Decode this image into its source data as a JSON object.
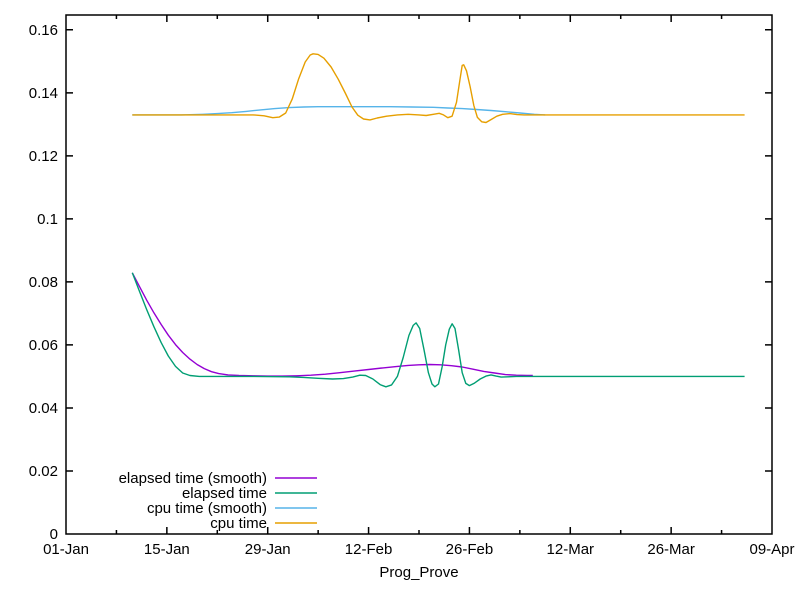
{
  "chart_data": {
    "type": "line",
    "title": "",
    "xlabel": "Prog_Prove",
    "ylabel": "",
    "grid": false,
    "x_axis": {
      "unit": "days-from-01-Jan",
      "range_days": [
        0,
        98
      ],
      "ticks": [
        {
          "day": 0,
          "label": "01-Jan"
        },
        {
          "day": 14,
          "label": "15-Jan"
        },
        {
          "day": 28,
          "label": "29-Jan"
        },
        {
          "day": 42,
          "label": "12-Feb"
        },
        {
          "day": 56,
          "label": "26-Feb"
        },
        {
          "day": 70,
          "label": "12-Mar"
        },
        {
          "day": 84,
          "label": "26-Mar"
        },
        {
          "day": 98,
          "label": "09-Apr"
        }
      ],
      "minor_tick_days": [
        7,
        21,
        35,
        49,
        63,
        77,
        91
      ]
    },
    "y_axis": {
      "range": [
        0,
        0.1647
      ],
      "ticks": [
        0,
        0.02,
        0.04,
        0.06,
        0.08,
        0.1,
        0.12,
        0.14,
        0.16
      ],
      "tick_labels": [
        "0",
        "0.02",
        "0.04",
        "0.06",
        "0.08",
        "0.1",
        "0.12",
        "0.14",
        "0.16"
      ]
    },
    "legend": {
      "position": "bottom-left-inside",
      "entries": [
        "elapsed time (smooth)",
        "elapsed time",
        "cpu time (smooth)",
        "cpu time"
      ]
    },
    "series": [
      {
        "name": "elapsed time (smooth)",
        "color": "#9400d3",
        "points": [
          [
            9.2,
            0.0829
          ],
          [
            10.2,
            0.0785
          ],
          [
            11.2,
            0.0742
          ],
          [
            12.2,
            0.0702
          ],
          [
            13.2,
            0.0665
          ],
          [
            14.2,
            0.0631
          ],
          [
            15.2,
            0.0601
          ],
          [
            16.2,
            0.0576
          ],
          [
            17.2,
            0.0555
          ],
          [
            18.2,
            0.0538
          ],
          [
            19.2,
            0.0525
          ],
          [
            20.2,
            0.0515
          ],
          [
            21.2,
            0.0509
          ],
          [
            22.5,
            0.0505
          ],
          [
            24,
            0.0503
          ],
          [
            26,
            0.0502
          ],
          [
            28,
            0.0501
          ],
          [
            30,
            0.0501
          ],
          [
            32,
            0.0502
          ],
          [
            34,
            0.0504
          ],
          [
            36,
            0.0507
          ],
          [
            38,
            0.0512
          ],
          [
            40,
            0.0517
          ],
          [
            42,
            0.0522
          ],
          [
            44,
            0.0527
          ],
          [
            46,
            0.0532
          ],
          [
            47.5,
            0.0535
          ],
          [
            49,
            0.0537
          ],
          [
            50.5,
            0.0538
          ],
          [
            52,
            0.0537
          ],
          [
            53.5,
            0.0534
          ],
          [
            55,
            0.053
          ],
          [
            56.5,
            0.0523
          ],
          [
            58,
            0.0516
          ],
          [
            59.5,
            0.0511
          ],
          [
            61,
            0.0506
          ],
          [
            62.5,
            0.0504
          ],
          [
            64,
            0.0503
          ],
          [
            64.8,
            0.0503
          ]
        ]
      },
      {
        "name": "elapsed time",
        "color": "#009e73",
        "points": [
          [
            9.2,
            0.0829
          ],
          [
            10.2,
            0.077
          ],
          [
            11.2,
            0.0712
          ],
          [
            12.2,
            0.0658
          ],
          [
            13.2,
            0.0608
          ],
          [
            14.2,
            0.0565
          ],
          [
            15.2,
            0.0532
          ],
          [
            16.2,
            0.0511
          ],
          [
            17.2,
            0.0503
          ],
          [
            18.5,
            0.05
          ],
          [
            25,
            0.05
          ],
          [
            31,
            0.0499
          ],
          [
            33,
            0.0497
          ],
          [
            35,
            0.0494
          ],
          [
            37,
            0.0492
          ],
          [
            38.5,
            0.0493
          ],
          [
            39.8,
            0.0498
          ],
          [
            40.8,
            0.0504
          ],
          [
            41.6,
            0.0503
          ],
          [
            42.6,
            0.0492
          ],
          [
            43.6,
            0.0474
          ],
          [
            44.4,
            0.0467
          ],
          [
            45.2,
            0.0473
          ],
          [
            46,
            0.05
          ],
          [
            46.8,
            0.056
          ],
          [
            47.6,
            0.063
          ],
          [
            48.2,
            0.0662
          ],
          [
            48.6,
            0.067
          ],
          [
            49.1,
            0.0652
          ],
          [
            49.7,
            0.0585
          ],
          [
            50.3,
            0.0512
          ],
          [
            50.8,
            0.0476
          ],
          [
            51.2,
            0.0467
          ],
          [
            51.7,
            0.0476
          ],
          [
            52.2,
            0.053
          ],
          [
            52.7,
            0.06
          ],
          [
            53.2,
            0.065
          ],
          [
            53.6,
            0.0667
          ],
          [
            54,
            0.0652
          ],
          [
            54.5,
            0.0585
          ],
          [
            55,
            0.0512
          ],
          [
            55.5,
            0.0478
          ],
          [
            56,
            0.0471
          ],
          [
            56.7,
            0.0479
          ],
          [
            57.5,
            0.0492
          ],
          [
            58.3,
            0.0501
          ],
          [
            59,
            0.0505
          ],
          [
            59.7,
            0.0501
          ],
          [
            60.4,
            0.0498
          ],
          [
            61.4,
            0.0499
          ],
          [
            62.5,
            0.05
          ],
          [
            94.2,
            0.05
          ]
        ]
      },
      {
        "name": "cpu time (smooth)",
        "color": "#56b4e9",
        "points": [
          [
            9.2,
            0.133
          ],
          [
            16,
            0.133
          ],
          [
            19,
            0.1332
          ],
          [
            21,
            0.1334
          ],
          [
            23,
            0.1337
          ],
          [
            25,
            0.1341
          ],
          [
            27,
            0.1346
          ],
          [
            29,
            0.135
          ],
          [
            31,
            0.1353
          ],
          [
            33,
            0.1355
          ],
          [
            35,
            0.1356
          ],
          [
            40,
            0.1356
          ],
          [
            45,
            0.1356
          ],
          [
            48,
            0.1355
          ],
          [
            51,
            0.1354
          ],
          [
            53,
            0.1352
          ],
          [
            55,
            0.135
          ],
          [
            57,
            0.1347
          ],
          [
            59,
            0.1344
          ],
          [
            61,
            0.134
          ],
          [
            63,
            0.1336
          ],
          [
            65,
            0.1332
          ],
          [
            66.5,
            0.133
          ]
        ]
      },
      {
        "name": "cpu time",
        "color": "#e69f00",
        "points": [
          [
            9.2,
            0.133
          ],
          [
            20,
            0.133
          ],
          [
            26,
            0.133
          ],
          [
            27.5,
            0.1327
          ],
          [
            28.7,
            0.1321
          ],
          [
            29.6,
            0.1323
          ],
          [
            30.5,
            0.1336
          ],
          [
            31.4,
            0.138
          ],
          [
            32.3,
            0.1445
          ],
          [
            33.2,
            0.1498
          ],
          [
            33.9,
            0.152
          ],
          [
            34.3,
            0.1524
          ],
          [
            35,
            0.1522
          ],
          [
            35.8,
            0.151
          ],
          [
            36.8,
            0.1482
          ],
          [
            37.8,
            0.1443
          ],
          [
            38.8,
            0.1398
          ],
          [
            39.7,
            0.1355
          ],
          [
            40.5,
            0.1329
          ],
          [
            41.3,
            0.1317
          ],
          [
            42.2,
            0.1314
          ],
          [
            43.2,
            0.132
          ],
          [
            44.5,
            0.1326
          ],
          [
            46,
            0.133
          ],
          [
            47.5,
            0.1332
          ],
          [
            49,
            0.133
          ],
          [
            50,
            0.1328
          ],
          [
            51,
            0.1332
          ],
          [
            51.8,
            0.1335
          ],
          [
            52.4,
            0.133
          ],
          [
            53,
            0.1321
          ],
          [
            53.6,
            0.1326
          ],
          [
            54.2,
            0.137
          ],
          [
            54.7,
            0.1445
          ],
          [
            55,
            0.1487
          ],
          [
            55.2,
            0.1489
          ],
          [
            55.6,
            0.147
          ],
          [
            56.1,
            0.142
          ],
          [
            56.6,
            0.136
          ],
          [
            57.1,
            0.1322
          ],
          [
            57.7,
            0.1308
          ],
          [
            58.3,
            0.1306
          ],
          [
            59,
            0.1315
          ],
          [
            59.8,
            0.1326
          ],
          [
            60.6,
            0.1332
          ],
          [
            61.6,
            0.1334
          ],
          [
            62.6,
            0.1331
          ],
          [
            63.6,
            0.133
          ],
          [
            94.2,
            0.133
          ]
        ]
      }
    ]
  },
  "colors": {
    "axis": "#000000",
    "background": "#ffffff"
  }
}
